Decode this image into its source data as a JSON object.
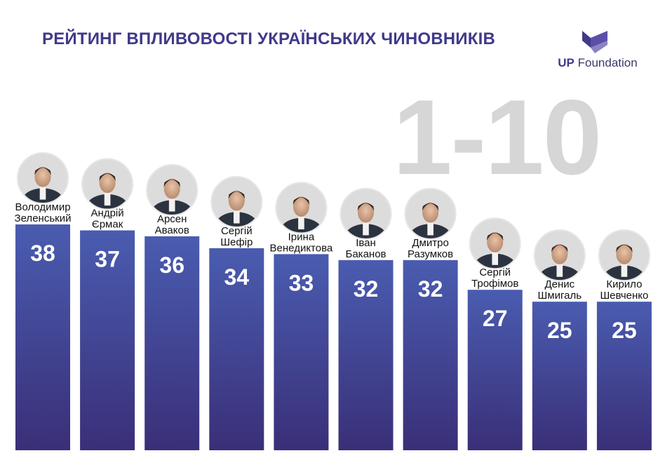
{
  "header": {
    "title": "РЕЙТИНГ ВПЛИВОВОСТІ УКРАЇНСЬКИХ ЧИНОВНИКІВ",
    "range_label": "1-10",
    "logo_up": "UP",
    "logo_foundation": "Foundation",
    "logo_icon": "up-foundation-logo-icon"
  },
  "colors": {
    "title": "#3f3a8a",
    "bar_top": "#4a5cb0",
    "bar_bottom": "#3a2f78",
    "range_text": "#d6d6d6"
  },
  "chart_data": {
    "type": "bar",
    "title": "РЕЙТИНГ ВПЛИВОВОСТІ УКРАЇНСЬКИХ ЧИНОВНИКІВ",
    "categories": [
      [
        "Володимир",
        "Зеленський"
      ],
      [
        "Андрій",
        "Єрмак"
      ],
      [
        "Арсен",
        "Аваков"
      ],
      [
        "Сергій",
        "Шефір"
      ],
      [
        "Ірина",
        "Венедиктова"
      ],
      [
        "Іван",
        "Баканов"
      ],
      [
        "Дмитро",
        "Разумков"
      ],
      [
        "Сергій",
        "Трофімов"
      ],
      [
        "Денис",
        "Шмигаль"
      ],
      [
        "Кирило",
        "Шевченко"
      ]
    ],
    "values": [
      38,
      37,
      36,
      34,
      33,
      32,
      32,
      27,
      25,
      25
    ],
    "ylim": [
      0,
      38
    ],
    "grid": false,
    "data_labels": true,
    "icons": "portrait-photo"
  }
}
